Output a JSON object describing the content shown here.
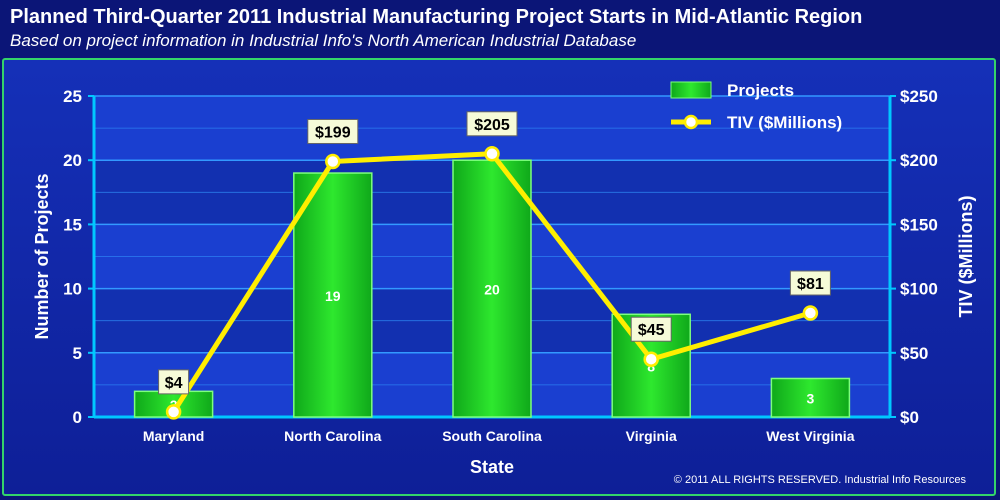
{
  "header": {
    "title": "Planned Third-Quarter 2011 Industrial Manufacturing Project Starts in Mid-Atlantic Region",
    "subtitle": "Based on project information in Industrial Info's North American Industrial Database"
  },
  "footer": {
    "copyright": "© 2011 ALL RIGHTS RESERVED. Industrial Info Resources"
  },
  "colors": {
    "bar": "#22cc22",
    "line": "#ffee00",
    "grid": "#3399ff",
    "axis": "#00c8ff",
    "text": "#ffffff"
  },
  "chart_data": {
    "type": "bar",
    "categories": [
      "Maryland",
      "North Carolina",
      "South Carolina",
      "Virginia",
      "West Virginia"
    ],
    "series": [
      {
        "name": "Projects",
        "type": "bar",
        "axis": "left",
        "values": [
          2,
          19,
          20,
          8,
          3
        ],
        "data_labels": [
          "2",
          "19",
          "20",
          "8",
          "3"
        ]
      },
      {
        "name": "TIV ($Millions)",
        "type": "line",
        "axis": "right",
        "values": [
          4,
          199,
          205,
          45,
          81
        ],
        "data_labels": [
          "$4",
          "$199",
          "$205",
          "$45",
          "$81"
        ]
      }
    ],
    "xlabel": "State",
    "ylabel": "Number of Projects",
    "y2label": "TIV ($Millions)",
    "ylim": [
      0,
      25
    ],
    "y2lim": [
      0,
      250
    ],
    "yticks": [
      "0",
      "5",
      "10",
      "15",
      "20",
      "25"
    ],
    "y2ticks": [
      "$0",
      "$50",
      "$100",
      "$150",
      "$200",
      "$250"
    ],
    "grid": true,
    "legend": "top-right"
  }
}
